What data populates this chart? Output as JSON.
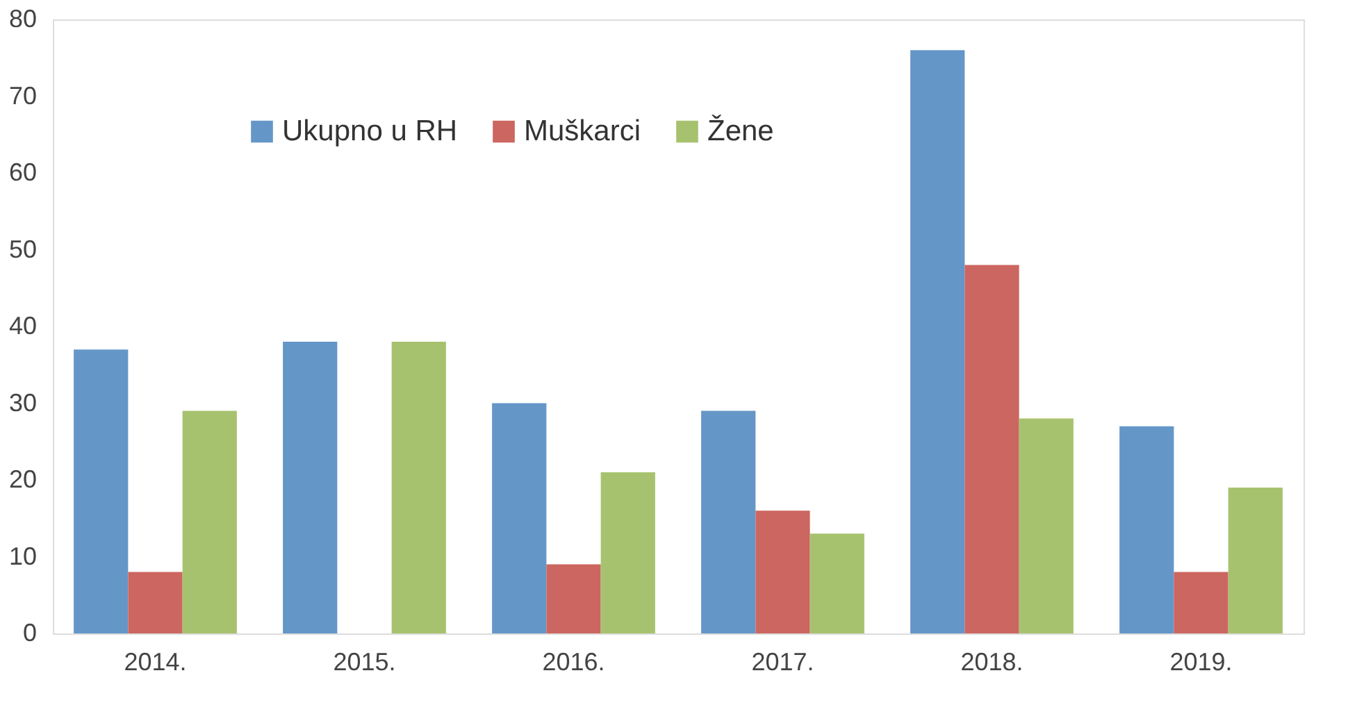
{
  "chart_data": {
    "type": "bar",
    "categories": [
      "2014.",
      "2015.",
      "2016.",
      "2017.",
      "2018.",
      "2019."
    ],
    "series": [
      {
        "name": "Ukupno u RH",
        "color": "#6596c8",
        "values": [
          37,
          38,
          30,
          29,
          76,
          27
        ]
      },
      {
        "name": "Muškarci",
        "color": "#cc6660",
        "values": [
          8,
          0,
          9,
          16,
          48,
          8
        ]
      },
      {
        "name": "Žene",
        "color": "#a7c26e",
        "values": [
          29,
          38,
          21,
          13,
          28,
          19
        ]
      }
    ],
    "ylim": [
      0,
      80
    ],
    "yticks": [
      0,
      10,
      20,
      30,
      40,
      50,
      60,
      70,
      80
    ],
    "grid": false,
    "legend": "top left"
  }
}
